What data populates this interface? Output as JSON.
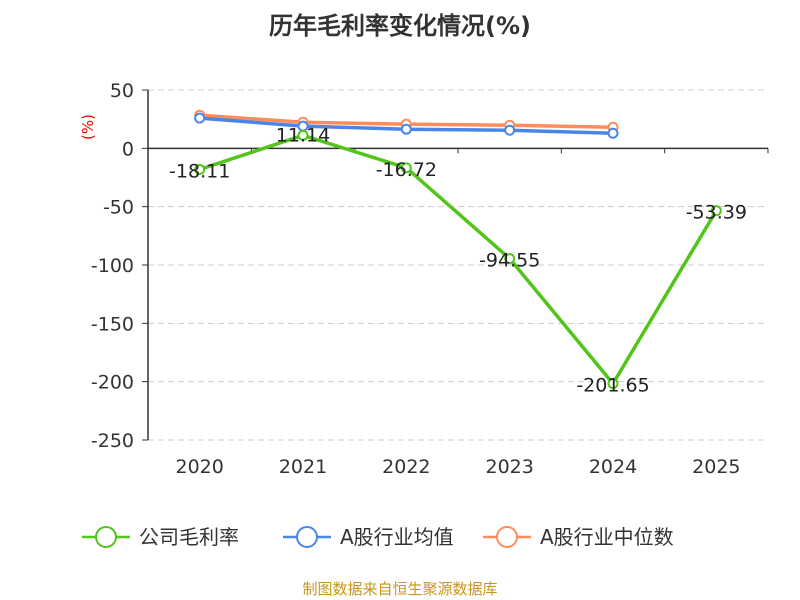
{
  "chart_data": {
    "type": "line",
    "title": "历年毛利率变化情况(%)",
    "ylabel": "(%)",
    "categories": [
      "2020",
      "2021",
      "2022",
      "2023",
      "2024",
      "2025"
    ],
    "ylim": [
      -250,
      50
    ],
    "yticks": [
      50,
      0,
      -50,
      -100,
      -150,
      -200,
      -250
    ],
    "grid": true,
    "legend_position": "bottom",
    "series": [
      {
        "name": "公司毛利率",
        "color": "#52c41a",
        "values": [
          -18.11,
          11.14,
          -16.72,
          -94.55,
          -201.65,
          -53.39
        ],
        "labels": [
          "-18.11",
          "11.14",
          "-16.72",
          "-94.55",
          "-201.65",
          "-53.39"
        ]
      },
      {
        "name": "A股行业均值",
        "color": "#4a86e8",
        "values": [
          25.9,
          19,
          16.4,
          15.5,
          12.9,
          null
        ]
      },
      {
        "name": "A股行业中位数",
        "color": "#ff8c5a",
        "values": [
          28.4,
          22.4,
          20.7,
          19.8,
          18.1,
          null
        ]
      }
    ]
  },
  "source": "制图数据来自恒生聚源数据库"
}
